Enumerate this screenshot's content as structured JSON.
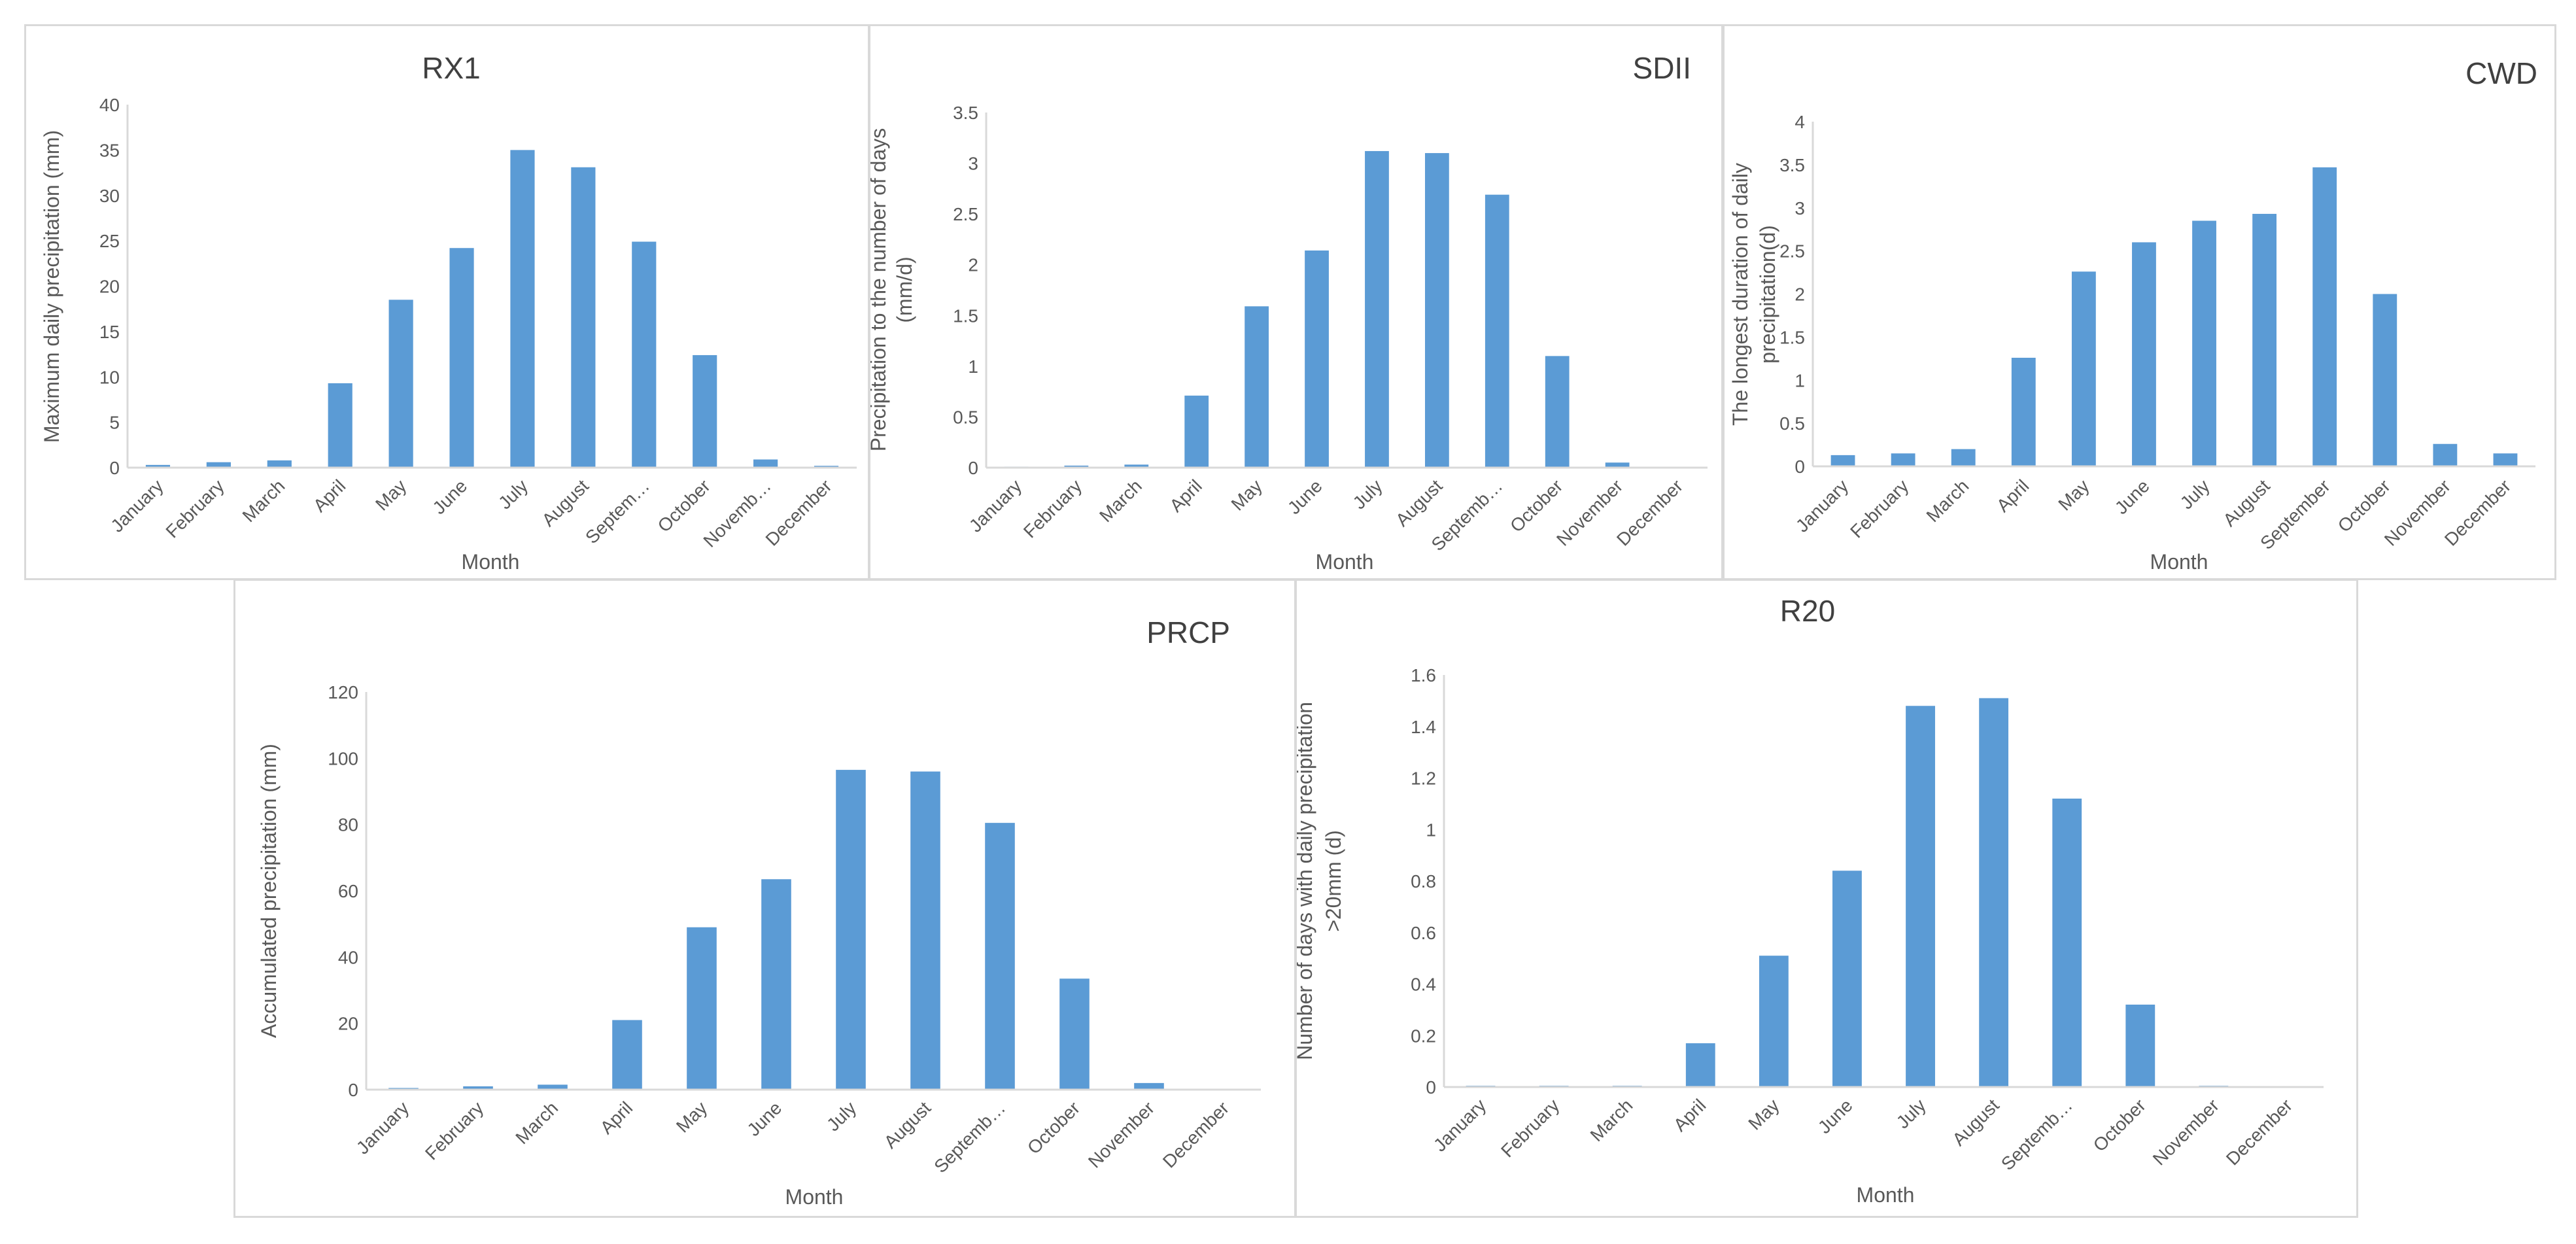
{
  "style": {
    "bar_color": "#5b9bd5",
    "axis_color": "#d9d9d9",
    "text_color": "#595959",
    "title_color": "#404040"
  },
  "chart_data": [
    {
      "type": "bar",
      "title": "RX1",
      "xlabel": "Month",
      "ylabel": "Maximum daily precipitation (mm)",
      "ylim": [
        0,
        40
      ],
      "yticks": [
        0,
        5,
        10,
        15,
        20,
        25,
        30,
        35,
        40
      ],
      "ytick_labels": [
        "0",
        "5",
        "10",
        "15",
        "20",
        "25",
        "30",
        "35",
        "40"
      ],
      "categories": [
        "January",
        "February",
        "March",
        "April",
        "May",
        "June",
        "July",
        "August",
        "Septem…",
        "October",
        "Novemb…",
        "December"
      ],
      "values": [
        0.3,
        0.6,
        0.8,
        9.3,
        18.5,
        24.2,
        35,
        33.1,
        24.9,
        12.4,
        0.9,
        0.2
      ]
    },
    {
      "type": "bar",
      "title": "SDII",
      "xlabel": "Month",
      "ylabel": "Precipitation to the number of days (mm/d)",
      "ylabel_lines": [
        "Precipitation to the number of days",
        "(mm/d)"
      ],
      "ylim": [
        0,
        3.5
      ],
      "yticks": [
        0,
        0.5,
        1,
        1.5,
        2,
        2.5,
        3,
        3.5
      ],
      "ytick_labels": [
        "0",
        "0.5",
        "1",
        "1.5",
        "2",
        "2.5",
        "3",
        "3.5"
      ],
      "categories": [
        "January",
        "February",
        "March",
        "April",
        "May",
        "June",
        "July",
        "August",
        "Septemb…",
        "October",
        "November",
        "December"
      ],
      "values": [
        0.01,
        0.02,
        0.03,
        0.71,
        1.59,
        2.14,
        3.12,
        3.1,
        2.69,
        1.1,
        0.05,
        0
      ]
    },
    {
      "type": "bar",
      "title": "CWD",
      "xlabel": "Month",
      "ylabel": "The longest duration of daily precipitation(d)",
      "ylabel_lines": [
        "The longest duration of daily",
        "precipitation(d)"
      ],
      "ylim": [
        0,
        4
      ],
      "yticks": [
        0,
        0.5,
        1,
        1.5,
        2,
        2.5,
        3,
        3.5,
        4
      ],
      "ytick_labels": [
        "0",
        "0.5",
        "1",
        "1.5",
        "2",
        "2.5",
        "3",
        "3.5",
        "4"
      ],
      "categories": [
        "January",
        "February",
        "March",
        "April",
        "May",
        "June",
        "July",
        "August",
        "September",
        "October",
        "November",
        "December"
      ],
      "values": [
        0.13,
        0.15,
        0.2,
        1.26,
        2.26,
        2.6,
        2.85,
        2.93,
        3.47,
        2.0,
        0.26,
        0.15
      ]
    },
    {
      "type": "bar",
      "title": "PRCP",
      "xlabel": "Month",
      "ylabel": "Accumulated precipitation (mm)",
      "ylim": [
        0,
        120
      ],
      "yticks": [
        0,
        20,
        40,
        60,
        80,
        100,
        120
      ],
      "ytick_labels": [
        "0",
        "20",
        "40",
        "60",
        "80",
        "100",
        "120"
      ],
      "categories": [
        "January",
        "February",
        "March",
        "April",
        "May",
        "June",
        "July",
        "August",
        "Septemb…",
        "October",
        "November",
        "December"
      ],
      "values": [
        0.5,
        1,
        1.5,
        21,
        49,
        63.5,
        96.5,
        96,
        80.5,
        33.5,
        2,
        0
      ]
    },
    {
      "type": "bar",
      "title": "R20",
      "xlabel": "Month",
      "ylabel": "Number of days with daily precipitation >20mm (d)",
      "ylabel_lines": [
        "Number of days with daily precipitation",
        ">20mm (d)"
      ],
      "ylim": [
        0,
        1.6
      ],
      "yticks": [
        0,
        0.2,
        0.4,
        0.6,
        0.8,
        1,
        1.2,
        1.4,
        1.6
      ],
      "ytick_labels": [
        "0",
        "0.2",
        "0.4",
        "0.6",
        "0.8",
        "1",
        "1.2",
        "1.4",
        "1.6"
      ],
      "categories": [
        "January",
        "February",
        "March",
        "April",
        "May",
        "June",
        "July",
        "August",
        "Septemb…",
        "October",
        "November",
        "December"
      ],
      "values": [
        0.005,
        0.005,
        0.005,
        0.17,
        0.51,
        0.84,
        1.48,
        1.51,
        1.12,
        0.32,
        0.005,
        0
      ]
    }
  ]
}
